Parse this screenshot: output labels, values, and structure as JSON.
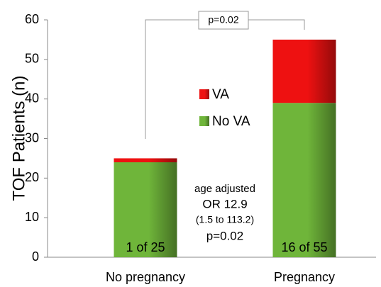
{
  "chart_data": {
    "type": "stacked_bar",
    "y_label": "TOF Patients (n)",
    "categories": [
      "No pregnancy",
      "Pregnancy"
    ],
    "series": [
      {
        "name": "No VA",
        "color": "#6fb53a",
        "values": [
          24,
          39
        ]
      },
      {
        "name": "VA",
        "color": "#ee1111",
        "values": [
          1,
          16
        ]
      }
    ],
    "ylim": [
      0,
      60
    ],
    "yticks": [
      0,
      10,
      20,
      30,
      40,
      50,
      60
    ],
    "bar_labels": [
      "1 of 25",
      "16 of 55"
    ],
    "bracket_label": "p=0.02",
    "stats_text": [
      "age adjusted",
      "OR 12.9",
      "(1.5 to 113.2)",
      "p=0.02"
    ]
  }
}
